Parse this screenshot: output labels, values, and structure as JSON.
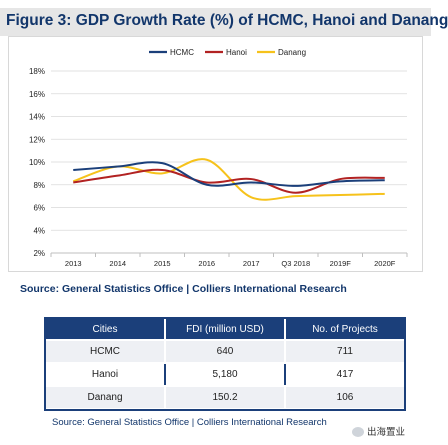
{
  "figure": {
    "title": "Figure 3: GDP Growth Rate (%) of HCMC, Hanoi and Danang",
    "source": "Source: General Statistics Office | Colliers International Research"
  },
  "chart_data": {
    "type": "line",
    "title": "Figure 3: GDP Growth Rate (%) of HCMC, Hanoi and Danang",
    "xlabel": "",
    "ylabel": "",
    "categories": [
      "2013",
      "2014",
      "2015",
      "2016",
      "2017",
      "Q3 2018",
      "2019F",
      "2020F"
    ],
    "yticks": [
      "2%",
      "4%",
      "6%",
      "8%",
      "10%",
      "12%",
      "14%",
      "16%",
      "18%"
    ],
    "ylim": [
      2,
      18
    ],
    "grid": true,
    "legend": "top",
    "series": [
      {
        "name": "HCMC",
        "color": "#1b3f7a",
        "values": [
          9.3,
          9.6,
          9.9,
          8.0,
          8.2,
          7.9,
          8.3,
          8.4
        ]
      },
      {
        "name": "Hanoi",
        "color": "#b22222",
        "values": [
          8.2,
          8.8,
          9.3,
          8.2,
          8.5,
          7.3,
          8.5,
          8.6
        ]
      },
      {
        "name": "Danang",
        "color": "#f6c21b",
        "values": [
          8.3,
          9.6,
          9.0,
          10.2,
          6.9,
          7.0,
          7.1,
          7.2
        ]
      }
    ]
  },
  "table": {
    "headers": [
      "Cities",
      "FDI (million USD)",
      "No. of Projects"
    ],
    "rows": [
      [
        "HCMC",
        "640",
        "711"
      ],
      [
        "Hanoi",
        "5,180",
        "417"
      ],
      [
        "Danang",
        "150.2",
        "106"
      ]
    ],
    "source": "Source: General Statistics Office | Colliers International Research"
  },
  "watermark": {
    "right_text": "出海置业",
    "icon": "wechat-icon"
  }
}
